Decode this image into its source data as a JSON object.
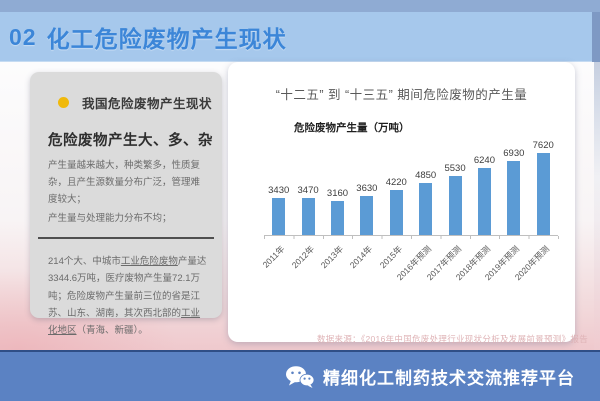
{
  "slide": {
    "top_bar": {
      "number": "02",
      "title": "化工危险废物产生现状"
    },
    "left_panel": {
      "section_title": "我国危险废物产生现状",
      "heading": "危险废物产生大、多、杂",
      "para1": "产生量越来越大，种类繁多，性质复杂，且产生源数量分布广泛，管理难度较大；",
      "para2": "产生量与处理能力分布不均；",
      "para3_pre": "214个大、中城市",
      "para3_link1": "工业危险废物",
      "para3_mid": "产量达3344.6万吨，医疗废物产生量72.1万吨；危险废物产生量前三位的省是江苏、山东、湖南，其次西北部的",
      "para3_link2": "工业化地区",
      "para3_post": "（青海、新疆）。"
    },
    "footer": {
      "label": "精细化工制药技术交流推荐平台"
    }
  },
  "chart_data": {
    "type": "bar",
    "title": "“十二五” 到 “十三五” 期间危险废物的产生量",
    "ylabel": "危险废物产生量（万吨）",
    "categories": [
      "2011年",
      "2012年",
      "2013年",
      "2014年",
      "2015年",
      "2016年预测",
      "2017年预测",
      "2018年预测",
      "2019年预测",
      "2020年预测"
    ],
    "values": [
      3430,
      3470,
      3160,
      3630,
      4220,
      4850,
      5530,
      6240,
      6930,
      7620
    ],
    "ylim": [
      0,
      8000
    ],
    "grid": false,
    "legend": "none",
    "source_note": "数据来源：《2016年中国危废处理行业现状分析及发展前景预测》报告"
  },
  "colors": {
    "top_strip": "#8FABD3",
    "banner_bg": "#A6C8EC",
    "banner_text": "#3C86D8",
    "left_card_bg": "#DBDBDB",
    "bar_color": "#5B9BD5",
    "footer_bg": "#5B82C3",
    "footer_border": "#2F4E86",
    "bullet": "#F0B90B"
  }
}
